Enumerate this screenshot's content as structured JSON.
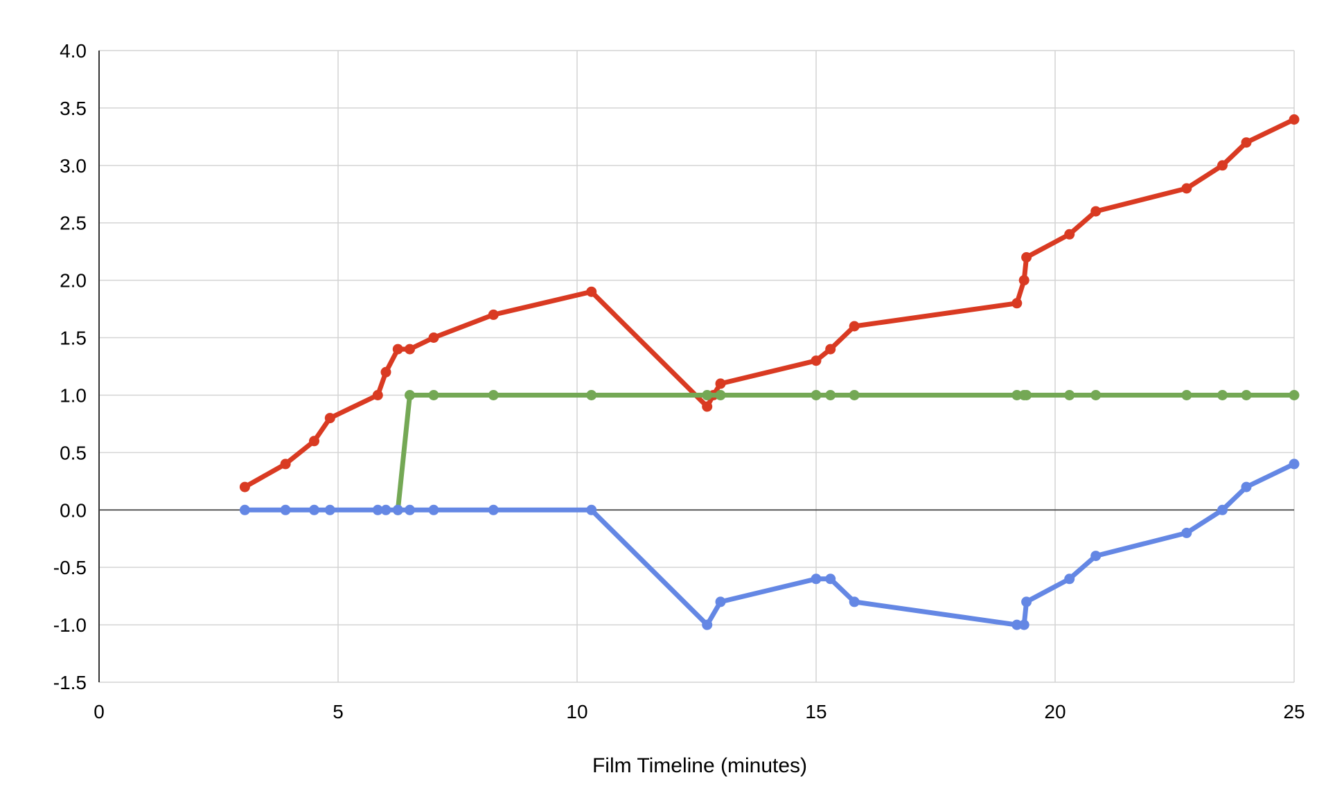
{
  "chart_data": {
    "type": "line",
    "title": "",
    "xlabel": "Film Timeline (minutes)",
    "ylabel": "",
    "xlim": [
      0,
      25
    ],
    "ylim": [
      -1.5,
      4.0
    ],
    "x_ticks": [
      "0",
      "5",
      "10",
      "15",
      "20",
      "25"
    ],
    "y_ticks": [
      "-1.5",
      "-1.0",
      "-0.5",
      "0.0",
      "0.5",
      "1.0",
      "1.5",
      "2.0",
      "2.5",
      "3.0",
      "3.5",
      "4.0"
    ],
    "grid": true,
    "legend": "none",
    "series": [
      {
        "color": "#d93a22",
        "points": [
          [
            3.05,
            0.2
          ],
          [
            3.9,
            0.4
          ],
          [
            4.5,
            0.6
          ],
          [
            4.83,
            0.8
          ],
          [
            5.83,
            1.0
          ],
          [
            6.0,
            1.2
          ],
          [
            6.25,
            1.4
          ],
          [
            6.5,
            1.4
          ],
          [
            7.0,
            1.5
          ],
          [
            8.25,
            1.7
          ],
          [
            10.3,
            1.9
          ],
          [
            12.72,
            0.9
          ],
          [
            12.85,
            1.0
          ],
          [
            13.0,
            1.1
          ],
          [
            15.0,
            1.3
          ],
          [
            15.3,
            1.4
          ],
          [
            15.8,
            1.6
          ],
          [
            19.2,
            1.8
          ],
          [
            19.35,
            2.0
          ],
          [
            19.4,
            2.2
          ],
          [
            20.3,
            2.4
          ],
          [
            20.85,
            2.6
          ],
          [
            22.75,
            2.8
          ],
          [
            23.5,
            3.0
          ],
          [
            24.0,
            3.2
          ],
          [
            25.0,
            3.4
          ]
        ]
      },
      {
        "color": "#74a855",
        "points": [
          [
            6.25,
            0.0
          ],
          [
            6.5,
            1.0
          ],
          [
            7.0,
            1.0
          ],
          [
            8.25,
            1.0
          ],
          [
            10.3,
            1.0
          ],
          [
            12.72,
            1.0
          ],
          [
            13.0,
            1.0
          ],
          [
            15.0,
            1.0
          ],
          [
            15.3,
            1.0
          ],
          [
            15.8,
            1.0
          ],
          [
            19.2,
            1.0
          ],
          [
            19.35,
            1.0
          ],
          [
            19.4,
            1.0
          ],
          [
            20.3,
            1.0
          ],
          [
            20.85,
            1.0
          ],
          [
            22.75,
            1.0
          ],
          [
            23.5,
            1.0
          ],
          [
            24.0,
            1.0
          ],
          [
            25.0,
            1.0
          ]
        ]
      },
      {
        "color": "#6487e4",
        "points": [
          [
            3.05,
            0.0
          ],
          [
            3.9,
            0.0
          ],
          [
            4.5,
            0.0
          ],
          [
            4.83,
            0.0
          ],
          [
            5.83,
            0.0
          ],
          [
            6.0,
            0.0
          ],
          [
            6.25,
            0.0
          ],
          [
            6.5,
            0.0
          ],
          [
            7.0,
            0.0
          ],
          [
            8.25,
            0.0
          ],
          [
            10.3,
            0.0
          ],
          [
            12.72,
            -1.0
          ],
          [
            13.0,
            -0.8
          ],
          [
            15.0,
            -0.6
          ],
          [
            15.3,
            -0.6
          ],
          [
            15.8,
            -0.8
          ],
          [
            19.2,
            -1.0
          ],
          [
            19.35,
            -1.0
          ],
          [
            19.4,
            -0.8
          ],
          [
            20.3,
            -0.6
          ],
          [
            20.85,
            -0.4
          ],
          [
            22.75,
            -0.2
          ],
          [
            23.5,
            0.0
          ],
          [
            24.0,
            0.2
          ],
          [
            25.0,
            0.4
          ]
        ]
      }
    ]
  }
}
